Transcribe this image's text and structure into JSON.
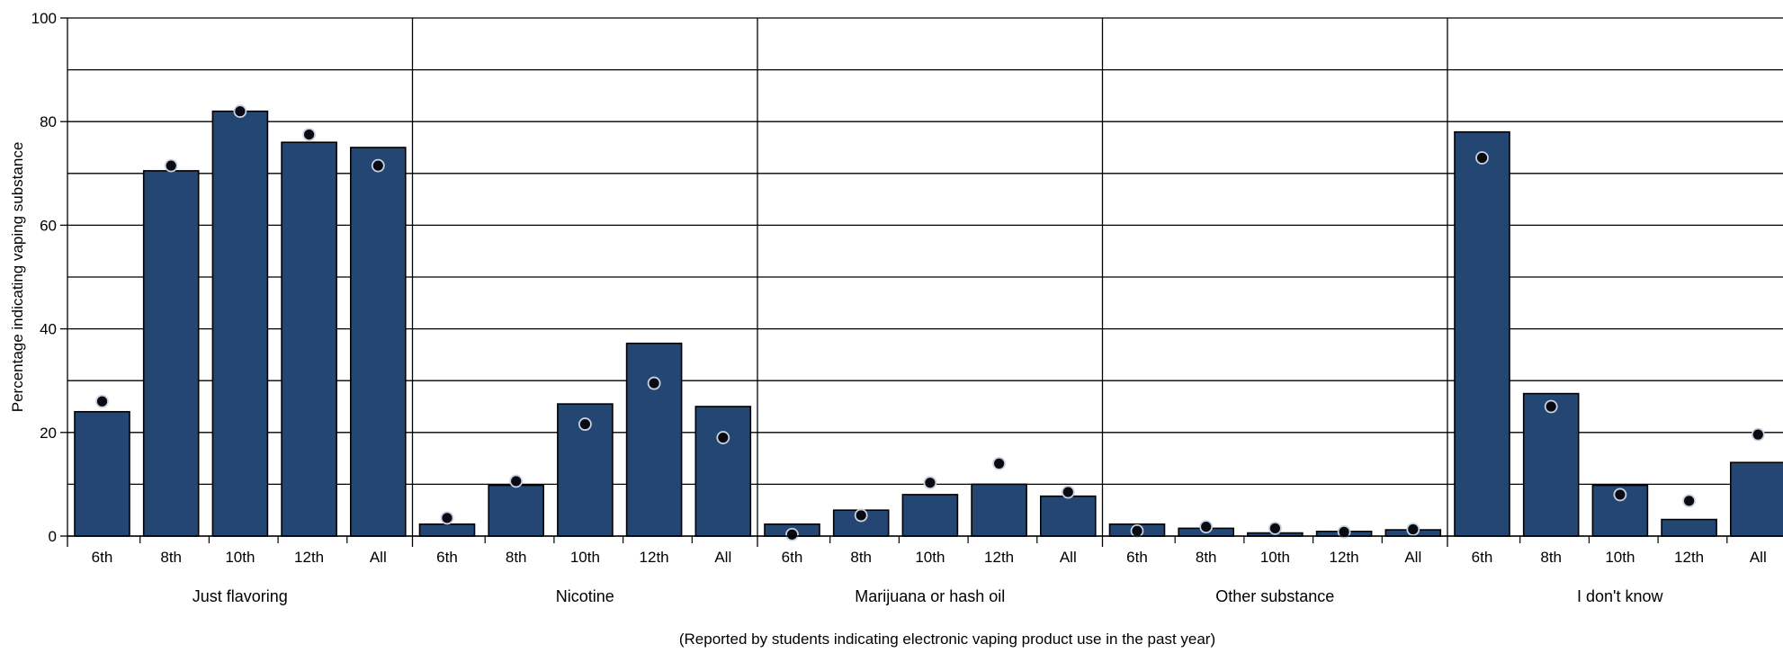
{
  "chart_data": {
    "type": "bar",
    "ylabel": "Percentage indicating vaping substance",
    "xlabel": "(Reported by students indicating electronic vaping product use in the past year)",
    "ylim": [
      0,
      100
    ],
    "yticks": [
      0,
      20,
      40,
      60,
      80,
      100
    ],
    "grid": true,
    "grades": [
      "6th",
      "8th",
      "10th",
      "12th",
      "All"
    ],
    "groups": [
      {
        "name": "Just flavoring",
        "bars": [
          24,
          70.5,
          82,
          76,
          75
        ],
        "dots": [
          26,
          71.5,
          82,
          77.5,
          71.5
        ]
      },
      {
        "name": "Nicotine",
        "bars": [
          2.3,
          9.8,
          25.5,
          37.2,
          25
        ],
        "dots": [
          3.5,
          10.6,
          21.6,
          29.5,
          19
        ]
      },
      {
        "name": "Marijuana or hash oil",
        "bars": [
          2.3,
          5,
          8,
          10,
          7.7
        ],
        "dots": [
          0.3,
          4,
          10.3,
          14,
          8.5
        ]
      },
      {
        "name": "Other substance",
        "bars": [
          2.3,
          1.5,
          0.6,
          0.9,
          1.2
        ],
        "dots": [
          1,
          1.8,
          1.5,
          0.8,
          1.3
        ]
      },
      {
        "name": "I don't know",
        "bars": [
          78,
          27.5,
          9.8,
          3.2,
          14.2
        ],
        "dots": [
          73,
          25,
          8,
          6.8,
          19.6
        ]
      }
    ],
    "colors": {
      "bar": "#244673",
      "bar_stroke": "#000000",
      "dot": "#0a0a12",
      "dot_stroke": "#c8d2e0"
    }
  }
}
